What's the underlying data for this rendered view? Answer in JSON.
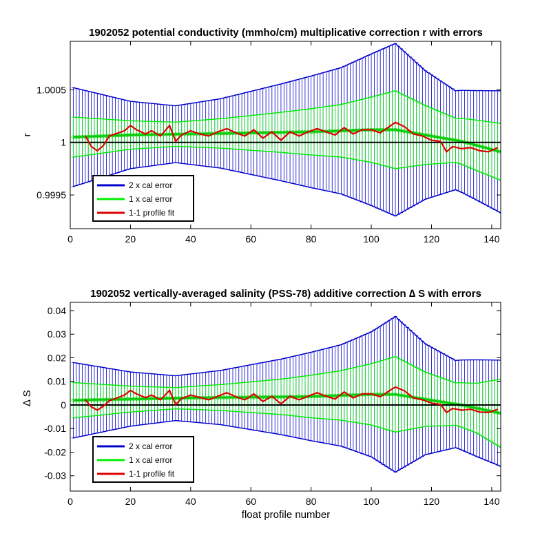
{
  "chart_data": [
    {
      "type": "line",
      "title": "1902052 potential conductivity (mmho/cm) multiplicative correction r with errors",
      "xlabel": "",
      "ylabel": "r",
      "xlim": [
        0,
        143
      ],
      "ylim": [
        0.99918,
        1.00096
      ],
      "xticks": [
        0,
        20,
        40,
        60,
        80,
        100,
        120,
        140
      ],
      "xtick_labels": [
        "0",
        "20",
        "40",
        "60",
        "80",
        "100",
        "120",
        "140"
      ],
      "yticks": [
        0.9995,
        1.0,
        1.0005
      ],
      "ytick_labels": [
        "0.9995",
        "1",
        "1.0005"
      ],
      "reference_line": 1.0,
      "center_line": {
        "x": [
          1,
          20,
          40,
          60,
          80,
          100,
          108,
          120,
          130,
          143
        ],
        "y": [
          1.00005,
          1.00007,
          1.00008,
          1.00009,
          1.0001,
          1.00012,
          1.00012,
          1.00006,
          1.00001,
          0.99991
        ]
      },
      "error_2x_halfwidth": {
        "x": [
          1,
          20,
          35,
          50,
          70,
          90,
          100,
          108,
          118,
          128,
          135,
          143
        ],
        "y": [
          0.00047,
          0.00032,
          0.00027,
          0.00033,
          0.00046,
          0.0006,
          0.00072,
          0.00082,
          0.00061,
          0.00047,
          0.00052,
          0.00058
        ]
      },
      "error_1x_halfwidth": {
        "x": [
          1,
          20,
          35,
          50,
          70,
          90,
          100,
          108,
          118,
          128,
          135,
          143
        ],
        "y": [
          0.00019,
          0.000135,
          0.000115,
          0.00014,
          0.00019,
          0.00025,
          0.00031,
          0.00037,
          0.00028,
          0.00021,
          0.00024,
          0.00027
        ]
      },
      "profile_fit": {
        "x": [
          5,
          7,
          9,
          11,
          13,
          16,
          18,
          20,
          22,
          25,
          27,
          30,
          33,
          35,
          37,
          40,
          43,
          46,
          49,
          52,
          55,
          58,
          61,
          64,
          67,
          70,
          73,
          76,
          79,
          82,
          85,
          88,
          91,
          94,
          97,
          100,
          103,
          106,
          108,
          111,
          114,
          117,
          120,
          123,
          125,
          127,
          130,
          133,
          136,
          139,
          142
        ],
        "y": [
          1.00006,
          0.99996,
          0.99992,
          0.99997,
          1.00006,
          1.00009,
          1.00011,
          1.00016,
          1.00012,
          1.00008,
          1.00011,
          1.00006,
          1.00016,
          1.00001,
          1.00007,
          1.00011,
          1.00008,
          1.00006,
          1.0001,
          1.00013,
          1.00009,
          1.00006,
          1.00012,
          1.00004,
          1.0001,
          1.00002,
          1.0001,
          1.00006,
          1.0001,
          1.00013,
          1.0001,
          1.00007,
          1.00014,
          1.00008,
          1.00012,
          1.00012,
          1.00009,
          1.00015,
          1.00019,
          1.00015,
          1.00008,
          1.00006,
          1.00002,
          1.00001,
          0.99991,
          0.99996,
          0.99994,
          0.99995,
          0.99992,
          0.99991,
          0.99995
        ]
      },
      "legend": {
        "entries": [
          {
            "label": "2 x cal error",
            "color": "#0000cc"
          },
          {
            "label": "1 x cal error",
            "color": "#00ee00"
          },
          {
            "label": "1-1 profile fit",
            "color": "#dd0000"
          }
        ],
        "placement": "bottom-left"
      },
      "grid": false
    },
    {
      "type": "line",
      "title": "1902052 vertically-averaged salinity (PSS-78) additive correction ∆ S with errors",
      "xlabel": "float profile number",
      "ylabel": "∆ S",
      "xlim": [
        0,
        143
      ],
      "ylim": [
        -0.0365,
        0.0435
      ],
      "xticks": [
        0,
        20,
        40,
        60,
        80,
        100,
        120,
        140
      ],
      "xtick_labels": [
        "0",
        "20",
        "40",
        "60",
        "80",
        "100",
        "120",
        "140"
      ],
      "yticks": [
        -0.03,
        -0.02,
        -0.01,
        0,
        0.01,
        0.02,
        0.03,
        0.04
      ],
      "ytick_labels": [
        "-0.03",
        "-0.02",
        "-0.01",
        "0",
        "0.01",
        "0.02",
        "0.03",
        "0.04"
      ],
      "reference_line": 0,
      "center_line": {
        "x": [
          1,
          20,
          40,
          60,
          80,
          100,
          108,
          120,
          130,
          143
        ],
        "y": [
          0.002,
          0.0025,
          0.003,
          0.0033,
          0.0036,
          0.0045,
          0.0045,
          0.002,
          0.0,
          -0.0035
        ]
      },
      "error_2x_halfwidth": {
        "x": [
          1,
          20,
          35,
          50,
          70,
          90,
          100,
          108,
          118,
          128,
          135,
          143
        ],
        "y": [
          0.016,
          0.0115,
          0.0095,
          0.0115,
          0.016,
          0.0215,
          0.0265,
          0.033,
          0.0235,
          0.0185,
          0.0205,
          0.0225
        ]
      },
      "error_1x_halfwidth": {
        "x": [
          1,
          20,
          35,
          50,
          70,
          90,
          100,
          108,
          118,
          128,
          135,
          143
        ],
        "y": [
          0.0075,
          0.0055,
          0.0045,
          0.0055,
          0.0075,
          0.0105,
          0.013,
          0.016,
          0.0115,
          0.009,
          0.0105,
          0.0145
        ]
      },
      "profile_fit": {
        "x": [
          5,
          7,
          9,
          11,
          13,
          16,
          18,
          20,
          22,
          25,
          27,
          30,
          33,
          35,
          37,
          40,
          43,
          46,
          49,
          52,
          55,
          58,
          61,
          64,
          67,
          70,
          73,
          76,
          79,
          82,
          85,
          88,
          91,
          94,
          97,
          100,
          103,
          106,
          108,
          111,
          114,
          117,
          120,
          123,
          125,
          127,
          130,
          133,
          136,
          139,
          142
        ],
        "y": [
          0.0022,
          -0.0008,
          -0.0022,
          -0.0005,
          0.0018,
          0.0032,
          0.0042,
          0.0062,
          0.0047,
          0.0031,
          0.0042,
          0.0022,
          0.0062,
          0.0002,
          0.0027,
          0.0042,
          0.0032,
          0.0022,
          0.0037,
          0.0052,
          0.0035,
          0.0022,
          0.0047,
          0.0015,
          0.0037,
          0.0005,
          0.0037,
          0.0022,
          0.0037,
          0.0052,
          0.0037,
          0.0025,
          0.0055,
          0.003,
          0.0047,
          0.0047,
          0.0035,
          0.006,
          0.0076,
          0.006,
          0.003,
          0.0022,
          0.0008,
          0.0002,
          -0.0032,
          -0.0015,
          -0.0022,
          -0.0018,
          -0.003,
          -0.0032,
          -0.0018
        ]
      },
      "legend": {
        "entries": [
          {
            "label": "2 x cal error",
            "color": "#0000cc"
          },
          {
            "label": "1 x cal error",
            "color": "#00ee00"
          },
          {
            "label": "1-1 profile fit",
            "color": "#dd0000"
          }
        ],
        "placement": "bottom-left"
      },
      "grid": false
    }
  ]
}
